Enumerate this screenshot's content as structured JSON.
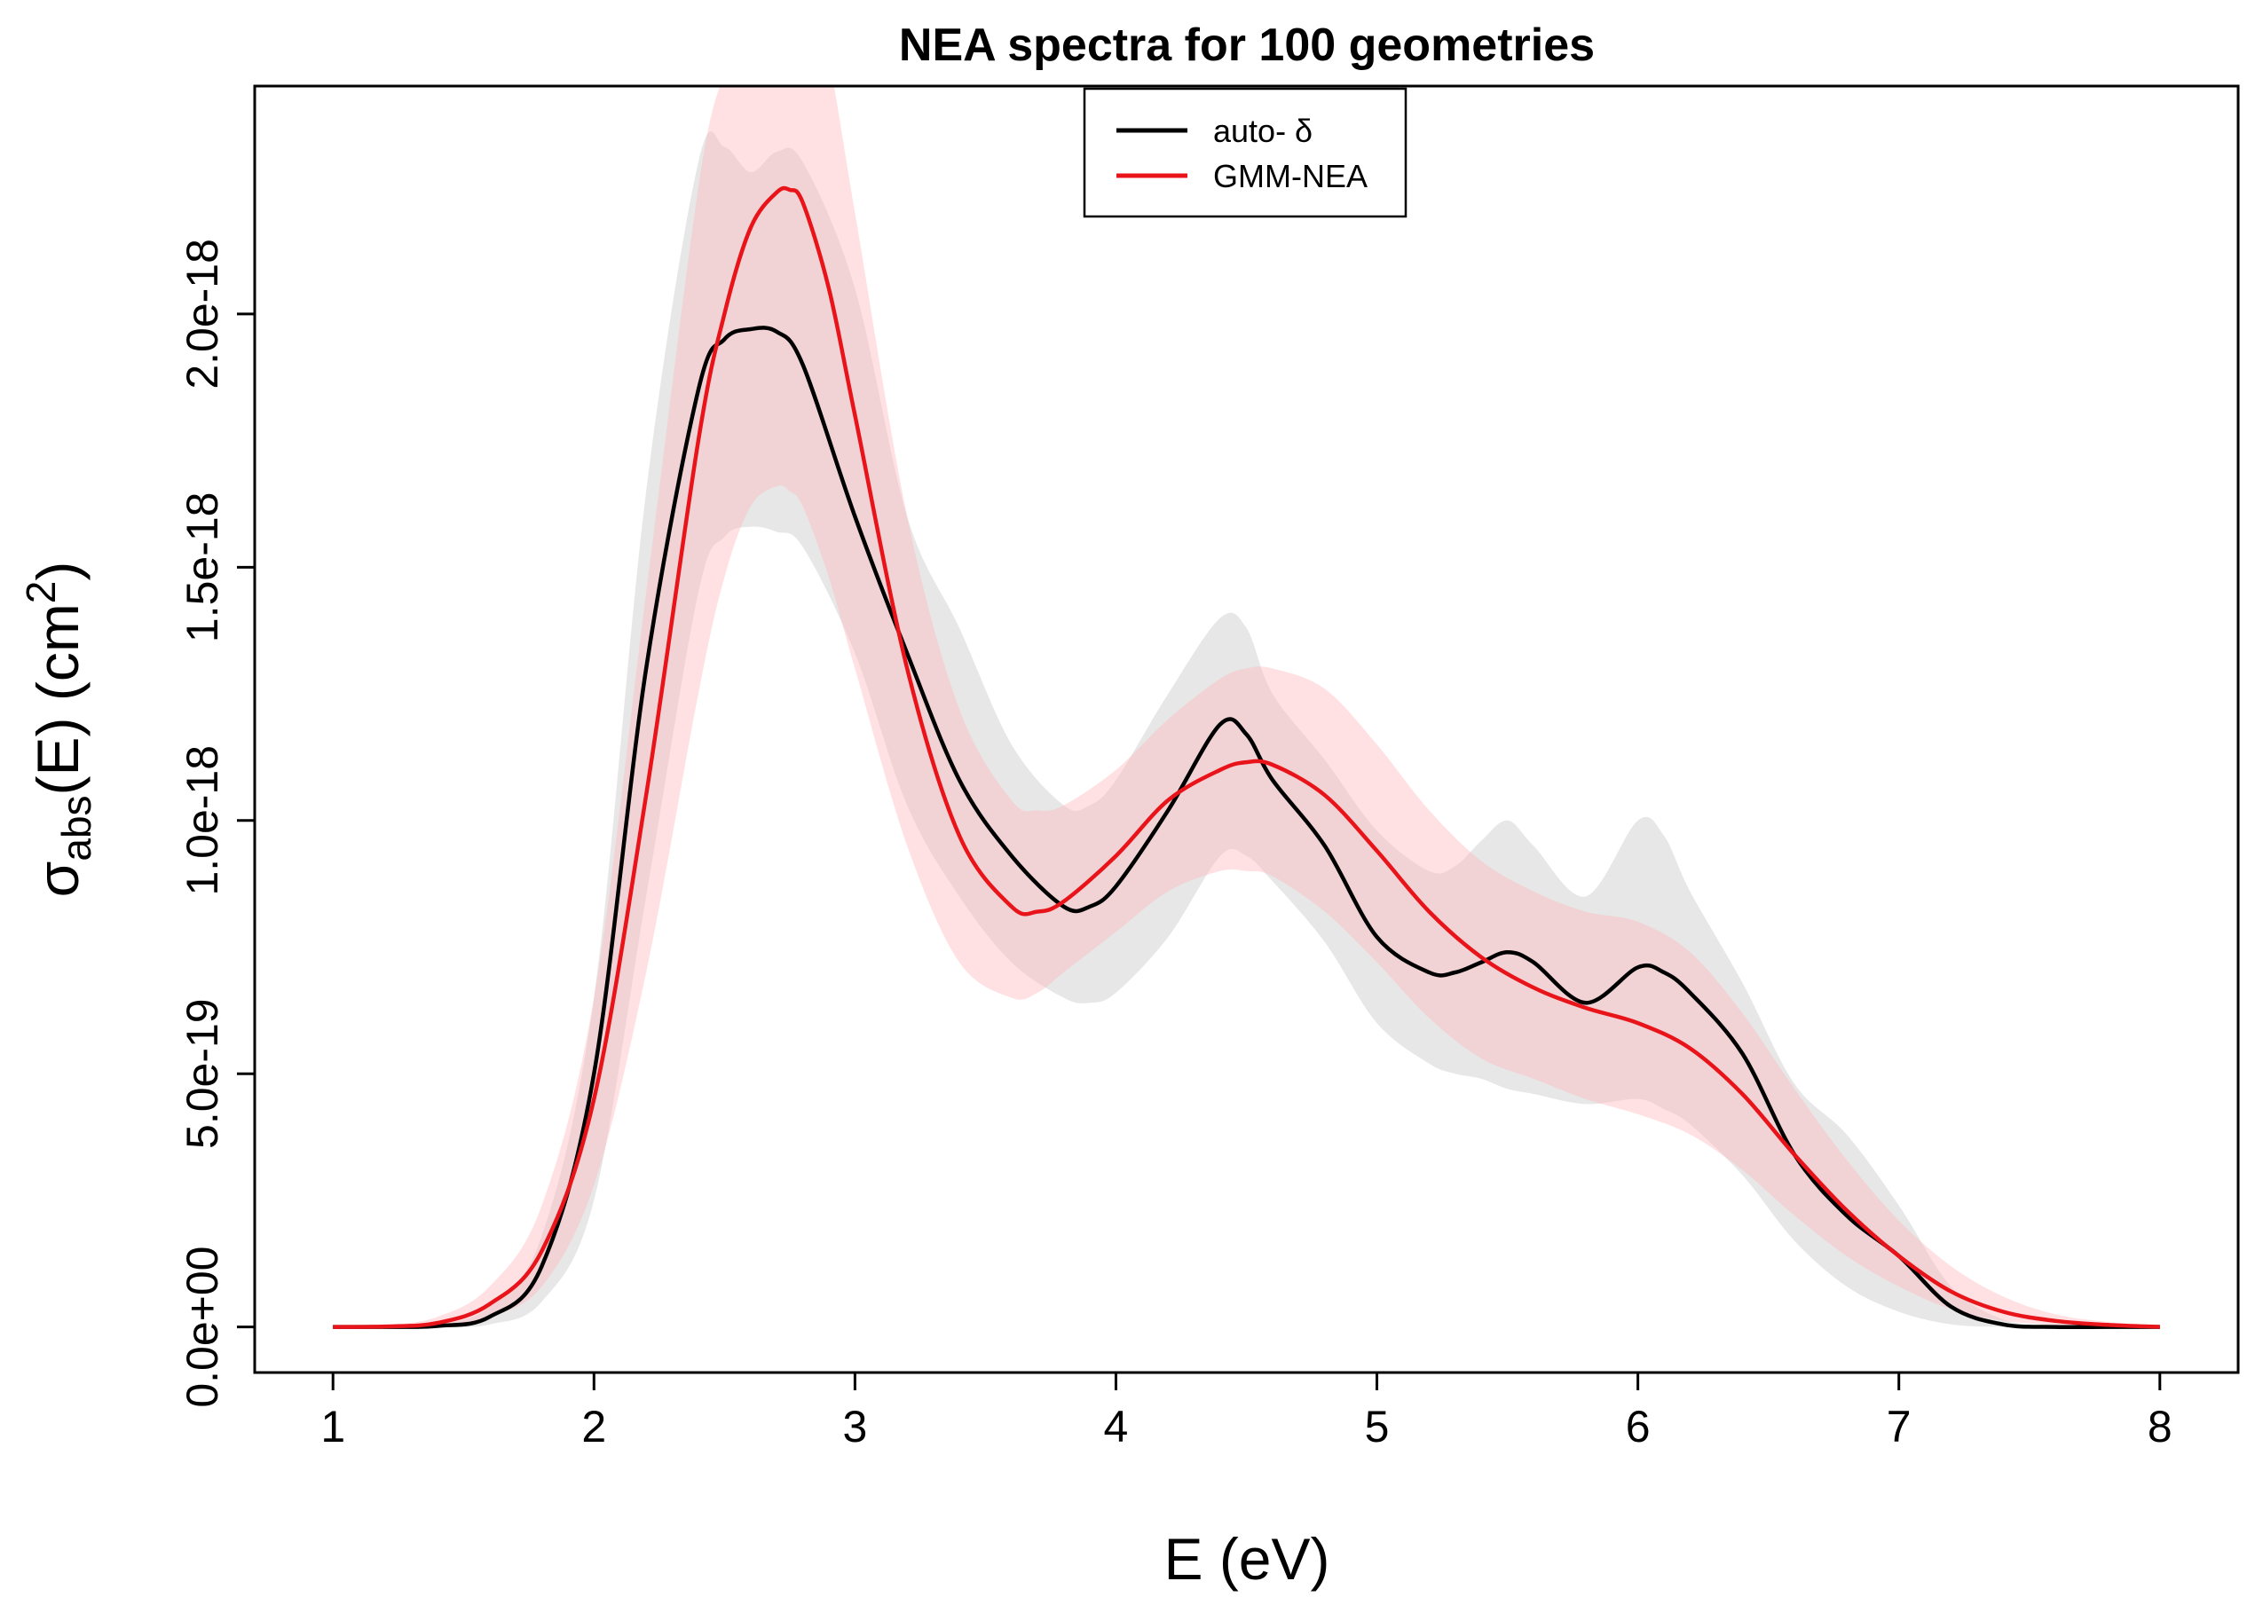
{
  "chart_data": {
    "type": "line",
    "title": "NEA spectra for 100 geometries",
    "xlabel": "E (eV)",
    "ylabel": {
      "main": "σ",
      "sub": "abs",
      "rest": "(E) (cm",
      "sup": "2",
      "close": ")"
    },
    "xlim": [
      0.7,
      8.3
    ],
    "ylim": [
      -9e-20,
      2.45e-18
    ],
    "x_ticks": [
      1,
      2,
      3,
      4,
      5,
      6,
      7,
      8
    ],
    "x_tick_labels": [
      "1",
      "2",
      "3",
      "4",
      "5",
      "6",
      "7",
      "8"
    ],
    "y_ticks": [
      0,
      5e-19,
      1e-18,
      1.5e-18,
      2e-18
    ],
    "y_tick_labels": [
      "0.0e+00",
      "5.0e-19",
      "1.0e-18",
      "1.5e-18",
      "2.0e-18"
    ],
    "legend": {
      "placement": "top-center",
      "entries": [
        {
          "label": "auto- δ",
          "color": "#000000"
        },
        {
          "label": "GMM-NEA",
          "color": "#e8141a"
        }
      ]
    },
    "series": [
      {
        "name": "auto- δ",
        "color": "#000000",
        "band_color": "#d4d4d4",
        "x": [
          1.0,
          1.2,
          1.4,
          1.6,
          1.8,
          2.0,
          2.2,
          2.4,
          2.5,
          2.6,
          2.7,
          2.8,
          3.0,
          3.2,
          3.4,
          3.6,
          3.8,
          3.9,
          4.0,
          4.2,
          4.4,
          4.5,
          4.6,
          4.8,
          5.0,
          5.2,
          5.3,
          5.4,
          5.5,
          5.6,
          5.8,
          6.0,
          6.1,
          6.2,
          6.4,
          6.6,
          6.8,
          7.0,
          7.2,
          7.4,
          7.6,
          7.8,
          8.0
        ],
        "y": [
          0,
          0,
          2e-21,
          2e-20,
          1.2e-19,
          5e-19,
          1.3e-18,
          1.85e-18,
          1.95e-18,
          1.97e-18,
          1.965e-18,
          1.9e-18,
          1.6e-18,
          1.33e-18,
          1.08e-18,
          9.3e-19,
          8.3e-19,
          8.3e-19,
          8.7e-19,
          1.02e-18,
          1.19e-18,
          1.17e-18,
          1.08e-18,
          9.5e-19,
          7.7e-19,
          7e-19,
          7e-19,
          7.2e-19,
          7.4e-19,
          7.2e-19,
          6.4e-19,
          7.1e-19,
          7e-19,
          6.6e-19,
          5.4e-19,
          3.4e-19,
          2.2e-19,
          1.4e-19,
          4e-20,
          5e-21,
          0,
          0,
          0
        ],
        "lower": [
          0,
          0,
          0,
          5e-21,
          5e-20,
          2.5e-19,
          8.5e-19,
          1.45e-18,
          1.56e-18,
          1.58e-18,
          1.57e-18,
          1.54e-18,
          1.33e-18,
          1.03e-18,
          8.5e-19,
          7.2e-19,
          6.5e-19,
          6.4e-19,
          6.6e-19,
          7.7e-19,
          9.3e-19,
          9.3e-19,
          8.8e-19,
          7.6e-19,
          6e-19,
          5.2e-19,
          5e-19,
          4.9e-19,
          4.7e-19,
          4.6e-19,
          4.4e-19,
          4.5e-19,
          4.3e-19,
          4e-19,
          3e-19,
          1.7e-19,
          8e-20,
          3e-20,
          5e-21,
          0,
          0,
          0,
          0
        ],
        "upper": [
          0,
          1e-21,
          5e-21,
          4e-20,
          1.8e-19,
          6.5e-19,
          1.65e-18,
          2.3e-18,
          2.33e-18,
          2.28e-18,
          2.32e-18,
          2.3e-18,
          2.05e-18,
          1.6e-18,
          1.38e-18,
          1.15e-18,
          1.03e-18,
          1.03e-18,
          1.08e-18,
          1.25e-18,
          1.4e-18,
          1.38e-18,
          1.25e-18,
          1.12e-18,
          9.8e-19,
          9e-19,
          9.1e-19,
          9.6e-19,
          1e-18,
          9.5e-19,
          8.5e-19,
          1e-18,
          9.7e-19,
          8.6e-19,
          6.8e-19,
          4.8e-19,
          3.8e-19,
          2.4e-19,
          8e-20,
          1.5e-20,
          2e-21,
          0,
          0
        ]
      },
      {
        "name": "GMM-NEA",
        "color": "#e8141a",
        "band_color": "#ffb8bc",
        "x": [
          1.0,
          1.2,
          1.4,
          1.6,
          1.8,
          2.0,
          2.2,
          2.4,
          2.5,
          2.6,
          2.7,
          2.75,
          2.8,
          2.9,
          3.0,
          3.2,
          3.4,
          3.6,
          3.7,
          3.8,
          4.0,
          4.2,
          4.4,
          4.5,
          4.6,
          4.8,
          5.0,
          5.2,
          5.4,
          5.6,
          5.8,
          6.0,
          6.2,
          6.4,
          6.6,
          6.8,
          7.0,
          7.2,
          7.4,
          7.6,
          7.8,
          8.0
        ],
        "y": [
          0,
          1e-21,
          8e-21,
          4.5e-20,
          1.5e-19,
          4.5e-19,
          1.05e-18,
          1.75e-18,
          2e-18,
          2.17e-18,
          2.24e-18,
          2.245e-18,
          2.22e-18,
          2.05e-18,
          1.8e-18,
          1.3e-18,
          9.7e-19,
          8.3e-19,
          8.2e-19,
          8.4e-19,
          9.3e-19,
          1.04e-18,
          1.1e-18,
          1.115e-18,
          1.11e-18,
          1.05e-18,
          9.4e-19,
          8.2e-19,
          7.3e-19,
          6.7e-19,
          6.3e-19,
          6e-19,
          5.5e-19,
          4.6e-19,
          3.4e-19,
          2.3e-19,
          1.4e-19,
          7e-20,
          3e-20,
          1.2e-20,
          4e-21,
          0
        ],
        "lower": [
          0,
          0,
          3e-21,
          2e-20,
          8e-20,
          2.8e-19,
          7e-19,
          1.25e-18,
          1.48e-18,
          1.62e-18,
          1.66e-18,
          1.65e-18,
          1.62e-18,
          1.48e-18,
          1.3e-18,
          9.5e-19,
          7.2e-19,
          6.5e-19,
          6.6e-19,
          7e-19,
          7.8e-19,
          8.6e-19,
          9e-19,
          9e-19,
          8.9e-19,
          8.2e-19,
          7.2e-19,
          6.1e-19,
          5.3e-19,
          4.9e-19,
          4.5e-19,
          4.2e-19,
          3.8e-19,
          3.1e-19,
          2.2e-19,
          1.4e-19,
          8e-20,
          3.5e-20,
          1.2e-20,
          4e-21,
          1e-21,
          0
        ],
        "upper": [
          1e-21,
          4e-21,
          2e-20,
          8e-20,
          2.4e-19,
          6.5e-19,
          1.45e-18,
          2.25e-18,
          2.48e-18,
          2.62e-18,
          2.7e-18,
          2.7e-18,
          2.68e-18,
          2.5e-18,
          2.2e-18,
          1.6e-18,
          1.22e-18,
          1.04e-18,
          1.02e-18,
          1.03e-18,
          1.1e-18,
          1.2e-18,
          1.28e-18,
          1.3e-18,
          1.3e-18,
          1.26e-18,
          1.15e-18,
          1.02e-18,
          9.2e-19,
          8.6e-19,
          8.2e-19,
          8e-19,
          7.4e-19,
          6.2e-19,
          4.7e-19,
          3.3e-19,
          2.1e-19,
          1.2e-19,
          6e-20,
          2.5e-20,
          1e-20,
          3e-21
        ]
      }
    ]
  }
}
